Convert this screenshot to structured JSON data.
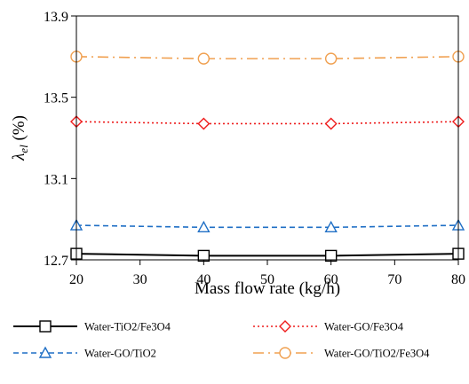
{
  "chart_data": {
    "type": "line",
    "xlabel": "Mass flow rate (kg/h)",
    "ylabel_symbol": "λ",
    "ylabel_subscript": "el",
    "ylabel_unit": " (%)",
    "x": [
      20,
      40,
      60,
      80
    ],
    "xlim": [
      20,
      80
    ],
    "xticks": [
      "20",
      "30",
      "40",
      "50",
      "60",
      "70",
      "80"
    ],
    "ylim": [
      12.7,
      13.9
    ],
    "yticks": [
      "12.7",
      "13.1",
      "13.5",
      "13.9"
    ],
    "grid": false,
    "legend_position": "bottom",
    "series": [
      {
        "name": "Water-TiO2/Fe3O4",
        "values": [
          12.73,
          12.72,
          12.72,
          12.73
        ],
        "color": "#000000",
        "dash": "solid",
        "marker": "square"
      },
      {
        "name": "Water-GO/Fe3O4",
        "values": [
          13.38,
          13.37,
          13.37,
          13.38
        ],
        "color": "#ee1c1c",
        "dash": "dotted",
        "marker": "diamond"
      },
      {
        "name": "Water-GO/TiO2",
        "values": [
          12.87,
          12.86,
          12.86,
          12.87
        ],
        "color": "#1f6fc5",
        "dash": "dashed",
        "marker": "triangle"
      },
      {
        "name": "Water-GO/TiO2/Fe3O4",
        "values": [
          13.7,
          13.69,
          13.69,
          13.7
        ],
        "color": "#f0a050",
        "dash": "dashdot",
        "marker": "circle"
      }
    ]
  }
}
